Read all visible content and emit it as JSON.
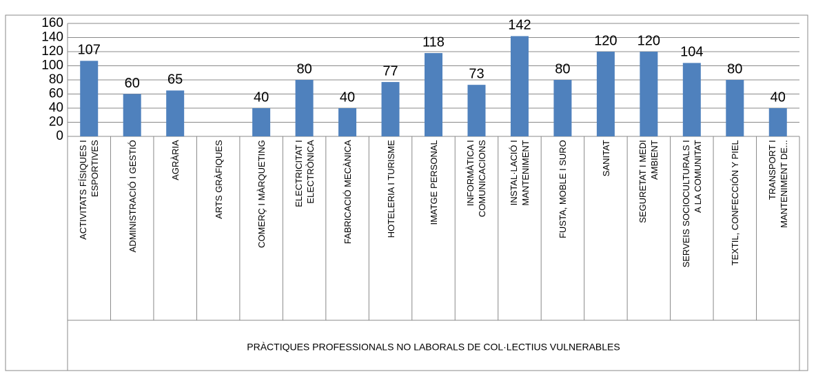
{
  "chart_data": {
    "type": "bar",
    "categories": [
      "ACTIVITATS FÍSIQUES I\nESPORTIVES",
      "ADMINISTRACIÓ I GESTIÓ",
      "AGRÀRIA",
      "ARTS GRÀFIQUES",
      "COMERÇ I MÀRQUETING",
      "ELECTRICITAT I\nELECTRÒNICA",
      "FABRICACIÓ MECÀNICA",
      "HOTELERIA I TURISME",
      "IMATGE PERSONAL",
      "INFORMÀTICA I\nCOMUNICACIONS",
      "INSTAL·LACIÓ I\nMANTENIMENT",
      "FUSTA, MOBLE I SURO",
      "SANITAT",
      "SEGURETAT I MEDI\nAMBIENT",
      "SERVEIS SOCIOCULTURALS I\nA LA COMUNITAT",
      "TEXTIL, CONFECCIÓN Y PIEL",
      "TRANSPORT I\nMANTENIMENT DE..."
    ],
    "values": [
      107,
      60,
      65,
      null,
      40,
      80,
      40,
      77,
      118,
      73,
      142,
      80,
      120,
      120,
      104,
      80,
      40
    ],
    "group_label": "PRÀCTIQUES PROFESSIONALS NO LABORALS DE COL·LECTIUS VULNERABLES",
    "color": "#4f81bd",
    "ylim": [
      0,
      160
    ],
    "yticks": [
      0,
      20,
      40,
      60,
      80,
      100,
      120,
      140,
      160
    ],
    "grid": true
  }
}
